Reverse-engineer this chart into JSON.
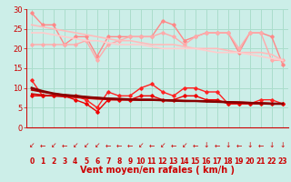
{
  "x": [
    0,
    1,
    2,
    3,
    4,
    5,
    6,
    7,
    8,
    9,
    10,
    11,
    12,
    13,
    14,
    15,
    16,
    17,
    18,
    19,
    20,
    21,
    22,
    23
  ],
  "xlabel": "Vent moyen/en rafales ( km/h )",
  "background_color": "#cceee8",
  "grid_color": "#aaddcc",
  "ylim": [
    0,
    30
  ],
  "yticks": [
    0,
    5,
    10,
    15,
    20,
    25,
    30
  ],
  "series": [
    {
      "label": "rafales_max",
      "color": "#ff8888",
      "lw": 1.0,
      "marker": "D",
      "ms": 1.8,
      "values": [
        29,
        26,
        26,
        21,
        23,
        23,
        18,
        23,
        23,
        23,
        23,
        23,
        27,
        26,
        22,
        23,
        24,
        24,
        24,
        19,
        24,
        24,
        23,
        16
      ]
    },
    {
      "label": "rafales_mean",
      "color": "#ffaaaa",
      "lw": 1.0,
      "marker": "D",
      "ms": 1.8,
      "values": [
        21,
        21,
        21,
        21,
        21,
        22,
        17,
        21,
        22,
        23,
        23,
        23,
        24,
        23,
        21,
        23,
        24,
        24,
        24,
        20,
        24,
        24,
        17,
        17
      ]
    },
    {
      "label": "rafales_trend1",
      "color": "#ffbbbb",
      "lw": 1.2,
      "marker": null,
      "ms": 0,
      "values": [
        26,
        25.5,
        25,
        24.5,
        24,
        23.5,
        23,
        22.5,
        22,
        22,
        21.5,
        21,
        21,
        21,
        20.5,
        20,
        20,
        20,
        19.5,
        19,
        19,
        19,
        18.5,
        17
      ]
    },
    {
      "label": "rafales_trend2",
      "color": "#ffcccc",
      "lw": 1.2,
      "marker": null,
      "ms": 0,
      "values": [
        24,
        24,
        23.5,
        23,
        22.5,
        22,
        22,
        21.5,
        21,
        21,
        21,
        20.5,
        20,
        20,
        20,
        20,
        19.5,
        19,
        19,
        19,
        18.5,
        18,
        17.5,
        17
      ]
    },
    {
      "label": "vent_max",
      "color": "#ff2222",
      "lw": 1.0,
      "marker": "D",
      "ms": 1.8,
      "values": [
        12,
        8,
        8,
        8,
        8,
        7,
        5,
        9,
        8,
        8,
        10,
        11,
        9,
        8,
        10,
        10,
        9,
        9,
        6,
        6,
        6,
        7,
        7,
        6
      ]
    },
    {
      "label": "vent_mean",
      "color": "#ee0000",
      "lw": 1.0,
      "marker": "D",
      "ms": 1.8,
      "values": [
        8,
        8,
        8,
        8,
        7,
        6,
        4,
        7,
        7,
        7,
        8,
        8,
        7,
        7,
        8,
        8,
        7,
        7,
        6,
        6,
        6,
        6,
        6,
        6
      ]
    },
    {
      "label": "vent_trend1",
      "color": "#cc0000",
      "lw": 1.2,
      "marker": null,
      "ms": 0,
      "values": [
        8.5,
        8.2,
        8.0,
        7.8,
        7.6,
        7.4,
        7.2,
        7.1,
        7.0,
        7.0,
        7.0,
        7.0,
        6.9,
        6.8,
        6.8,
        6.7,
        6.7,
        6.6,
        6.5,
        6.4,
        6.3,
        6.2,
        6.1,
        6.0
      ]
    },
    {
      "label": "vent_trend2",
      "color": "#aa0000",
      "lw": 1.4,
      "marker": null,
      "ms": 0,
      "values": [
        9.5,
        9.0,
        8.5,
        8.2,
        8.0,
        7.7,
        7.5,
        7.3,
        7.2,
        7.1,
        7.0,
        7.0,
        6.9,
        6.8,
        6.7,
        6.7,
        6.6,
        6.5,
        6.4,
        6.3,
        6.2,
        6.1,
        6.0,
        6.0
      ]
    },
    {
      "label": "vent_darkred",
      "color": "#880000",
      "lw": 1.8,
      "marker": null,
      "ms": 0,
      "values": [
        10,
        9.2,
        8.6,
        8.2,
        8.0,
        7.7,
        7.5,
        7.3,
        7.2,
        7.1,
        7.0,
        7.0,
        6.9,
        6.8,
        6.7,
        6.7,
        6.6,
        6.5,
        6.4,
        6.3,
        6.2,
        6.1,
        6.0,
        6.0
      ]
    }
  ],
  "arrow_chars": [
    "↙",
    "←",
    "↙",
    "←",
    "↙",
    "↙",
    "↙",
    "←",
    "←",
    "←",
    "↙",
    "←",
    "↙",
    "←",
    "↙",
    "←",
    "↓",
    "←",
    "↓",
    "←",
    "↓",
    "←",
    "↓",
    "↓"
  ]
}
